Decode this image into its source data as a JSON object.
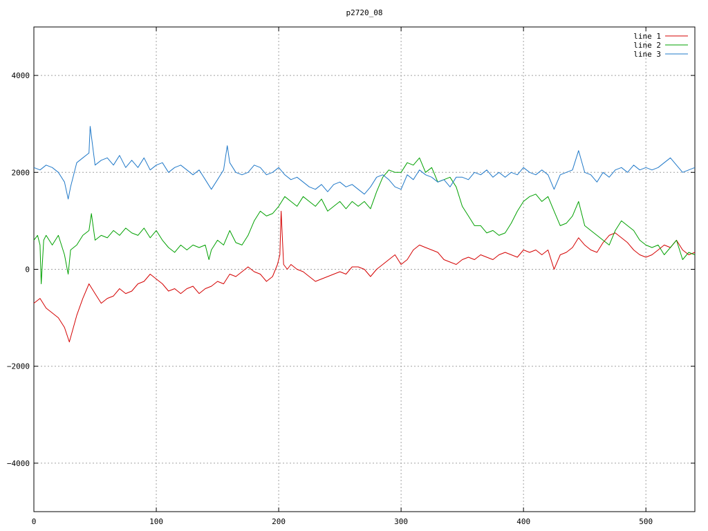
{
  "chart_data": {
    "type": "line",
    "title": "p2720_08",
    "xlabel": "",
    "ylabel": "",
    "xlim": [
      0,
      540
    ],
    "ylim": [
      -5000,
      5000
    ],
    "xticks": [
      0,
      100,
      200,
      300,
      400,
      500
    ],
    "yticks": [
      -4000,
      -2000,
      0,
      2000,
      4000
    ],
    "grid": true,
    "legend_position": "top-right",
    "series": [
      {
        "name": "line 1",
        "color": "#d40000",
        "x": [
          0,
          5,
          10,
          15,
          20,
          25,
          29,
          35,
          40,
          45,
          50,
          55,
          60,
          65,
          70,
          75,
          80,
          85,
          90,
          95,
          100,
          105,
          110,
          115,
          120,
          125,
          130,
          135,
          140,
          145,
          150,
          155,
          160,
          165,
          170,
          175,
          180,
          185,
          190,
          195,
          199,
          201,
          202,
          204,
          207,
          210,
          215,
          220,
          225,
          230,
          235,
          240,
          245,
          250,
          255,
          260,
          265,
          270,
          275,
          280,
          285,
          290,
          295,
          300,
          305,
          310,
          315,
          320,
          325,
          330,
          335,
          340,
          345,
          350,
          355,
          360,
          365,
          370,
          375,
          380,
          385,
          390,
          395,
          400,
          405,
          410,
          415,
          420,
          425,
          430,
          435,
          440,
          445,
          450,
          455,
          460,
          465,
          470,
          475,
          480,
          485,
          490,
          495,
          500,
          505,
          510,
          515,
          520,
          525,
          530,
          535,
          540
        ],
        "values": [
          -700,
          -600,
          -800,
          -900,
          -1000,
          -1200,
          -1500,
          -950,
          -600,
          -300,
          -500,
          -700,
          -600,
          -550,
          -400,
          -500,
          -450,
          -300,
          -250,
          -100,
          -200,
          -300,
          -450,
          -400,
          -500,
          -400,
          -350,
          -500,
          -400,
          -350,
          -250,
          -300,
          -100,
          -150,
          -50,
          50,
          -50,
          -100,
          -250,
          -150,
          100,
          300,
          1200,
          100,
          0,
          100,
          0,
          -50,
          -150,
          -250,
          -200,
          -150,
          -100,
          -50,
          -100,
          50,
          50,
          0,
          -150,
          0,
          100,
          200,
          300,
          100,
          200,
          400,
          500,
          450,
          400,
          350,
          200,
          150,
          100,
          200,
          250,
          200,
          300,
          250,
          200,
          300,
          350,
          300,
          250,
          400,
          350,
          400,
          300,
          400,
          0,
          300,
          350,
          450,
          650,
          500,
          400,
          350,
          550,
          700,
          750,
          650,
          550,
          400,
          300,
          250,
          300,
          400,
          500,
          450,
          600,
          400,
          300,
          350
        ]
      },
      {
        "name": "line 2",
        "color": "#00a000",
        "x": [
          0,
          3,
          5,
          6,
          8,
          10,
          15,
          20,
          25,
          28,
          30,
          35,
          40,
          45,
          47,
          50,
          55,
          60,
          65,
          70,
          75,
          80,
          85,
          90,
          95,
          100,
          105,
          110,
          115,
          120,
          125,
          130,
          135,
          140,
          143,
          145,
          150,
          155,
          160,
          165,
          170,
          175,
          180,
          185,
          190,
          195,
          200,
          205,
          210,
          215,
          220,
          225,
          230,
          235,
          240,
          245,
          250,
          255,
          260,
          265,
          270,
          275,
          280,
          285,
          290,
          295,
          300,
          305,
          310,
          315,
          320,
          325,
          330,
          335,
          340,
          345,
          350,
          355,
          360,
          365,
          370,
          375,
          380,
          385,
          390,
          395,
          400,
          405,
          410,
          415,
          420,
          425,
          430,
          435,
          440,
          445,
          450,
          455,
          460,
          465,
          470,
          475,
          480,
          485,
          490,
          495,
          500,
          505,
          510,
          515,
          520,
          525,
          530,
          535,
          540
        ],
        "values": [
          600,
          700,
          500,
          -300,
          600,
          700,
          500,
          700,
          300,
          -100,
          400,
          500,
          700,
          800,
          1150,
          600,
          700,
          650,
          800,
          700,
          850,
          750,
          700,
          850,
          650,
          800,
          600,
          450,
          350,
          500,
          400,
          500,
          450,
          500,
          200,
          400,
          600,
          500,
          800,
          550,
          500,
          700,
          1000,
          1200,
          1100,
          1150,
          1300,
          1500,
          1400,
          1300,
          1500,
          1400,
          1300,
          1450,
          1200,
          1300,
          1400,
          1250,
          1400,
          1300,
          1400,
          1250,
          1600,
          1900,
          2050,
          2000,
          2000,
          2200,
          2150,
          2300,
          2000,
          2100,
          1800,
          1850,
          1900,
          1700,
          1300,
          1100,
          900,
          900,
          750,
          800,
          700,
          750,
          950,
          1200,
          1400,
          1500,
          1550,
          1400,
          1500,
          1200,
          900,
          950,
          1100,
          1400,
          900,
          800,
          700,
          600,
          500,
          800,
          1000,
          900,
          800,
          600,
          500,
          450,
          500,
          300,
          450,
          600,
          200,
          350,
          300
        ]
      },
      {
        "name": "line 3",
        "color": "#1f78c8",
        "x": [
          0,
          5,
          10,
          15,
          20,
          25,
          28,
          30,
          35,
          40,
          45,
          46,
          50,
          55,
          60,
          65,
          70,
          75,
          80,
          85,
          90,
          95,
          100,
          105,
          110,
          115,
          120,
          125,
          130,
          135,
          140,
          145,
          150,
          155,
          158,
          160,
          165,
          170,
          175,
          180,
          185,
          190,
          195,
          200,
          205,
          210,
          215,
          220,
          225,
          230,
          235,
          240,
          245,
          250,
          255,
          260,
          265,
          270,
          275,
          280,
          285,
          290,
          295,
          300,
          305,
          310,
          315,
          320,
          325,
          330,
          335,
          340,
          345,
          350,
          355,
          360,
          365,
          370,
          375,
          380,
          385,
          390,
          395,
          400,
          405,
          410,
          415,
          420,
          425,
          430,
          435,
          440,
          445,
          450,
          455,
          460,
          465,
          470,
          475,
          480,
          485,
          490,
          495,
          500,
          505,
          510,
          515,
          520,
          525,
          530,
          535,
          540
        ],
        "values": [
          2100,
          2050,
          2150,
          2100,
          2000,
          1800,
          1450,
          1700,
          2200,
          2300,
          2400,
          2950,
          2150,
          2250,
          2300,
          2150,
          2350,
          2100,
          2250,
          2100,
          2300,
          2050,
          2150,
          2200,
          2000,
          2100,
          2150,
          2050,
          1950,
          2050,
          1850,
          1650,
          1850,
          2050,
          2550,
          2200,
          2000,
          1950,
          2000,
          2150,
          2100,
          1950,
          2000,
          2100,
          1950,
          1850,
          1900,
          1800,
          1700,
          1650,
          1750,
          1600,
          1750,
          1800,
          1700,
          1750,
          1650,
          1550,
          1700,
          1900,
          1950,
          1850,
          1700,
          1650,
          1950,
          1850,
          2050,
          1950,
          1900,
          1800,
          1850,
          1700,
          1900,
          1900,
          1850,
          2000,
          1950,
          2050,
          1900,
          2000,
          1900,
          2000,
          1950,
          2100,
          2000,
          1950,
          2050,
          1950,
          1650,
          1950,
          2000,
          2050,
          2450,
          2000,
          1950,
          1800,
          2000,
          1900,
          2050,
          2100,
          2000,
          2150,
          2050,
          2100,
          2050,
          2100,
          2200,
          2300,
          2150,
          2000,
          2050,
          2100
        ]
      }
    ]
  }
}
